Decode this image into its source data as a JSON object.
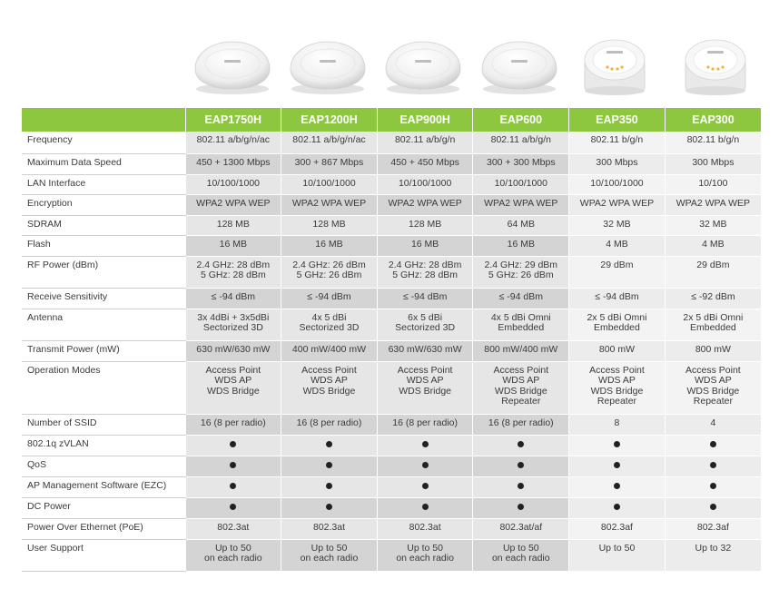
{
  "products": [
    "EAP1750H",
    "EAP1200H",
    "EAP900H",
    "EAP600",
    "EAP350",
    "EAP300"
  ],
  "product_images": [
    "ceiling-access-point-icon",
    "ceiling-access-point-icon",
    "ceiling-access-point-icon",
    "ceiling-access-point-icon",
    "ceiling-access-point-led-icon",
    "ceiling-access-point-led-icon"
  ],
  "colors": {
    "header_green": "#8dc63f",
    "cell_gray": "#d4d4d4",
    "cell_light": "#e6e6e6",
    "dot": "#222222"
  },
  "rows": [
    {
      "label": "Frequency",
      "values": [
        [
          "802.11 a/b/g/n/ac"
        ],
        [
          "802.11 a/b/g/n/ac"
        ],
        [
          "802.11 a/b/g/n"
        ],
        [
          "802.11 a/b/g/n"
        ],
        [
          "802.11 b/g/n"
        ],
        [
          "802.11 b/g/n"
        ]
      ]
    },
    {
      "label": "Maximum Data Speed",
      "values": [
        [
          "450 + 1300 Mbps"
        ],
        [
          "300 + 867 Mbps"
        ],
        [
          "450 + 450 Mbps"
        ],
        [
          "300 + 300 Mbps"
        ],
        [
          "300 Mbps"
        ],
        [
          "300 Mbps"
        ]
      ]
    },
    {
      "label": "LAN Interface",
      "values": [
        [
          "10/100/1000"
        ],
        [
          "10/100/1000"
        ],
        [
          "10/100/1000"
        ],
        [
          "10/100/1000"
        ],
        [
          "10/100/1000"
        ],
        [
          "10/100"
        ]
      ]
    },
    {
      "label": "Encryption",
      "values": [
        [
          "WPA2 WPA WEP"
        ],
        [
          "WPA2 WPA WEP"
        ],
        [
          "WPA2 WPA WEP"
        ],
        [
          "WPA2 WPA WEP"
        ],
        [
          "WPA2 WPA WEP"
        ],
        [
          "WPA2 WPA WEP"
        ]
      ]
    },
    {
      "label": "SDRAM",
      "values": [
        [
          "128 MB"
        ],
        [
          "128 MB"
        ],
        [
          "128 MB"
        ],
        [
          "64 MB"
        ],
        [
          "32 MB"
        ],
        [
          "32 MB"
        ]
      ]
    },
    {
      "label": "Flash",
      "values": [
        [
          "16 MB"
        ],
        [
          "16 MB"
        ],
        [
          "16 MB"
        ],
        [
          "16 MB"
        ],
        [
          "4 MB"
        ],
        [
          "4 MB"
        ]
      ]
    },
    {
      "label": "RF Power (dBm)",
      "values": [
        [
          "2.4 GHz: 28 dBm",
          "5 GHz: 28 dBm"
        ],
        [
          "2.4 GHz: 26 dBm",
          "5 GHz: 26 dBm"
        ],
        [
          "2.4 GHz: 28 dBm",
          "5 GHz: 28 dBm"
        ],
        [
          "2.4 GHz: 29 dBm",
          "5 GHz: 26 dBm"
        ],
        [
          "29 dBm"
        ],
        [
          "29 dBm"
        ]
      ]
    },
    {
      "label": "Receive Sensitivity",
      "values": [
        [
          "≤ -94 dBm"
        ],
        [
          "≤ -94 dBm"
        ],
        [
          "≤ -94 dBm"
        ],
        [
          "≤ -94 dBm"
        ],
        [
          "≤ -94 dBm"
        ],
        [
          "≤ -92 dBm"
        ]
      ]
    },
    {
      "label": "Antenna",
      "values": [
        [
          "3x 4dBi + 3x5dBi",
          "Sectorized 3D"
        ],
        [
          "4x 5 dBi",
          "Sectorized 3D"
        ],
        [
          "6x 5 dBi",
          "Sectorized 3D"
        ],
        [
          "4x 5 dBi Omni",
          "Embedded"
        ],
        [
          "2x 5 dBi Omni",
          "Embedded"
        ],
        [
          "2x 5 dBi Omni",
          "Embedded"
        ]
      ]
    },
    {
      "label": "Transmit Power (mW)",
      "values": [
        [
          "630 mW/630 mW"
        ],
        [
          "400 mW/400 mW"
        ],
        [
          "630 mW/630 mW"
        ],
        [
          "800 mW/400 mW"
        ],
        [
          "800 mW"
        ],
        [
          "800 mW"
        ]
      ]
    },
    {
      "label": "Operation Modes",
      "values": [
        [
          "Access Point",
          "WDS AP",
          "WDS Bridge"
        ],
        [
          "Access Point",
          "WDS AP",
          "WDS Bridge"
        ],
        [
          "Access Point",
          "WDS AP",
          "WDS Bridge"
        ],
        [
          "Access Point",
          "WDS AP",
          "WDS Bridge",
          "Repeater"
        ],
        [
          "Access Point",
          "WDS AP",
          "WDS Bridge",
          "Repeater"
        ],
        [
          "Access Point",
          "WDS AP",
          "WDS Bridge",
          "Repeater"
        ]
      ]
    },
    {
      "label": "Number of SSID",
      "values": [
        [
          "16 (8 per radio)"
        ],
        [
          "16 (8 per radio)"
        ],
        [
          "16 (8 per radio)"
        ],
        [
          "16 (8 per radio)"
        ],
        [
          "8"
        ],
        [
          "4"
        ]
      ]
    },
    {
      "label": "802.1q zVLAN",
      "dots": [
        true,
        true,
        true,
        true,
        true,
        true
      ]
    },
    {
      "label": "QoS",
      "dots": [
        true,
        true,
        true,
        true,
        true,
        true
      ]
    },
    {
      "label": "AP Management Software (EZC)",
      "dots": [
        true,
        true,
        true,
        true,
        true,
        true
      ]
    },
    {
      "label": "DC Power",
      "dots": [
        true,
        true,
        true,
        true,
        true,
        true
      ]
    },
    {
      "label": "Power Over Ethernet (PoE)",
      "values": [
        [
          "802.3at"
        ],
        [
          "802.3at"
        ],
        [
          "802.3at"
        ],
        [
          "802.3at/af"
        ],
        [
          "802.3af"
        ],
        [
          "802.3af"
        ]
      ]
    },
    {
      "label": "User Support",
      "values": [
        [
          "Up to 50",
          "on each radio"
        ],
        [
          "Up to 50",
          "on each radio"
        ],
        [
          "Up to 50",
          "on each radio"
        ],
        [
          "Up to 50",
          "on each radio"
        ],
        [
          "Up to 50"
        ],
        [
          "Up to 32"
        ]
      ]
    }
  ]
}
